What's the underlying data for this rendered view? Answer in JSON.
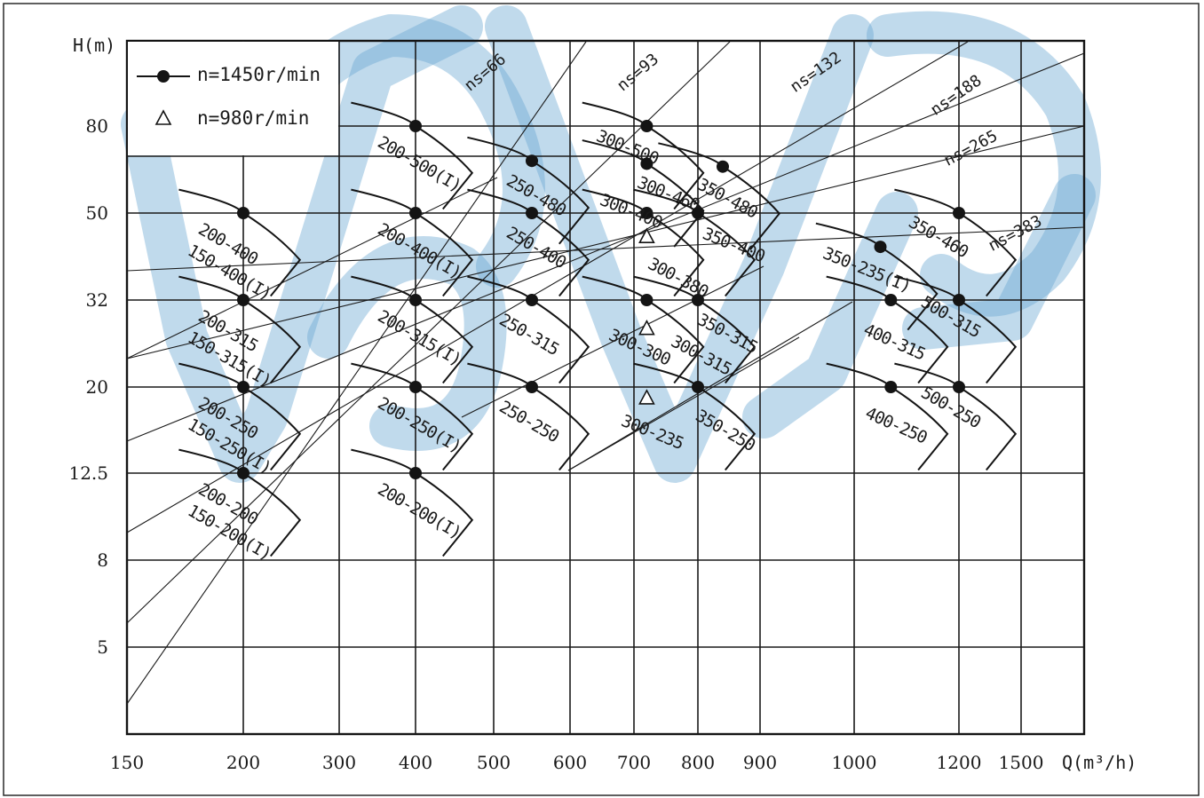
{
  "chart_data": {
    "type": "scatter",
    "xlabel": "Q(m³/h)",
    "ylabel": "H(m)",
    "x_ticks": [
      150,
      200,
      300,
      400,
      500,
      600,
      700,
      800,
      900,
      1000,
      1200,
      1500
    ],
    "y_ticks": [
      5,
      8,
      12.5,
      20,
      32,
      50,
      80
    ],
    "grid": true,
    "legend_position": "top-left",
    "legend": [
      {
        "symbol": "filled-circle",
        "label": "n=1450r/min"
      },
      {
        "symbol": "triangle",
        "label": "n=980r/min"
      }
    ],
    "specific_speed_lines": [
      "ns=66",
      "ns=93",
      "ns=132",
      "ns=188",
      "ns=265",
      "ns=383"
    ],
    "series": [
      {
        "name": "n=1450r/min",
        "points": [
          {
            "q": 200,
            "h": 50,
            "label": "200-400 150-400(I)"
          },
          {
            "q": 200,
            "h": 32,
            "label": "200-315 150-315(I)"
          },
          {
            "q": 200,
            "h": 20,
            "label": "200-250 150-250(I)"
          },
          {
            "q": 200,
            "h": 12.5,
            "label": "200-200 150-200(I)"
          },
          {
            "q": 400,
            "h": 80,
            "label": "200-500(I)"
          },
          {
            "q": 400,
            "h": 50,
            "label": "200-400(I)"
          },
          {
            "q": 400,
            "h": 32,
            "label": "200-315(I)"
          },
          {
            "q": 400,
            "h": 20,
            "label": "200-250(I)"
          },
          {
            "q": 400,
            "h": 12.5,
            "label": "200-200(I)"
          },
          {
            "q": 550,
            "h": 68,
            "label": "250-480"
          },
          {
            "q": 550,
            "h": 50,
            "label": "250-400"
          },
          {
            "q": 550,
            "h": 32,
            "label": "250-315"
          },
          {
            "q": 550,
            "h": 20,
            "label": "250-250"
          },
          {
            "q": 720,
            "h": 80,
            "label": "300-500"
          },
          {
            "q": 720,
            "h": 67,
            "label": "300-460"
          },
          {
            "q": 720,
            "h": 50,
            "label": "300-400"
          },
          {
            "q": 720,
            "h": 32,
            "label": "300-300"
          },
          {
            "q": 800,
            "h": 50,
            "label": "350-400"
          },
          {
            "q": 800,
            "h": 32,
            "label": "350-315"
          },
          {
            "q": 800,
            "h": 20,
            "label": "350-250"
          },
          {
            "q": 840,
            "h": 66,
            "label": "350-480"
          },
          {
            "q": 1050,
            "h": 43,
            "label": "350-235(I)"
          },
          {
            "q": 1070,
            "h": 32,
            "label": "400-315"
          },
          {
            "q": 1070,
            "h": 20,
            "label": "400-250"
          },
          {
            "q": 1200,
            "h": 50,
            "label": "350-460"
          },
          {
            "q": 1200,
            "h": 32,
            "label": "500-315"
          },
          {
            "q": 1200,
            "h": 20,
            "label": "500-250"
          }
        ]
      },
      {
        "name": "n=980r/min",
        "points": [
          {
            "q": 720,
            "h": 45,
            "label": "300-380"
          },
          {
            "q": 720,
            "h": 28,
            "label": "300-315"
          },
          {
            "q": 720,
            "h": 19,
            "label": "300-235"
          }
        ]
      }
    ]
  }
}
